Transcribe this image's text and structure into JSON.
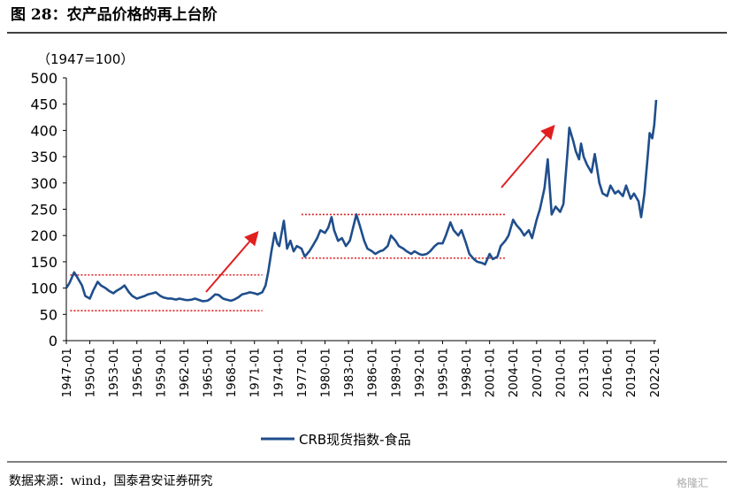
{
  "chart_data": {
    "type": "line",
    "title": "图 28：农产品价格的再上台阶",
    "y_label": "（1947=100）",
    "source": "数据来源：wind，国泰君安证券研究",
    "watermark": "格隆汇",
    "x": [
      "1947-01",
      "1947-06",
      "1948-01",
      "1948-06",
      "1949-01",
      "1949-06",
      "1950-01",
      "1950-06",
      "1951-01",
      "1951-06",
      "1952-01",
      "1952-06",
      "1953-01",
      "1953-06",
      "1954-01",
      "1954-06",
      "1955-01",
      "1955-06",
      "1956-01",
      "1956-06",
      "1957-01",
      "1957-06",
      "1958-01",
      "1958-06",
      "1959-01",
      "1959-06",
      "1960-01",
      "1960-06",
      "1961-01",
      "1961-06",
      "1962-01",
      "1962-06",
      "1963-01",
      "1963-06",
      "1964-01",
      "1964-06",
      "1965-01",
      "1965-06",
      "1966-01",
      "1966-06",
      "1967-01",
      "1967-06",
      "1968-01",
      "1968-06",
      "1969-01",
      "1969-06",
      "1970-01",
      "1970-06",
      "1971-01",
      "1971-06",
      "1972-01",
      "1972-06",
      "1972-10",
      "1973-03",
      "1973-08",
      "1973-12",
      "1974-03",
      "1974-10",
      "1975-03",
      "1975-08",
      "1976-01",
      "1976-06",
      "1977-01",
      "1977-06",
      "1978-01",
      "1978-06",
      "1979-01",
      "1979-06",
      "1980-01",
      "1980-06",
      "1980-11",
      "1981-03",
      "1981-09",
      "1982-03",
      "1982-09",
      "1983-03",
      "1983-09",
      "1984-01",
      "1984-06",
      "1985-01",
      "1985-06",
      "1986-01",
      "1986-06",
      "1987-01",
      "1987-06",
      "1988-01",
      "1988-06",
      "1989-01",
      "1989-06",
      "1990-01",
      "1990-06",
      "1991-01",
      "1991-06",
      "1992-01",
      "1992-06",
      "1993-01",
      "1993-06",
      "1994-01",
      "1994-06",
      "1995-01",
      "1995-06",
      "1996-01",
      "1996-06",
      "1997-01",
      "1997-06",
      "1998-01",
      "1998-06",
      "1999-01",
      "1999-06",
      "2000-01",
      "2000-06",
      "2001-01",
      "2001-06",
      "2002-01",
      "2002-06",
      "2003-01",
      "2003-06",
      "2004-01",
      "2004-06",
      "2005-01",
      "2005-06",
      "2006-01",
      "2006-06",
      "2007-01",
      "2007-06",
      "2008-01",
      "2008-06",
      "2008-12",
      "2009-06",
      "2010-01",
      "2010-06",
      "2011-01",
      "2011-03",
      "2011-09",
      "2012-01",
      "2012-06",
      "2012-09",
      "2013-01",
      "2013-06",
      "2014-01",
      "2014-06",
      "2015-01",
      "2015-06",
      "2016-01",
      "2016-06",
      "2017-01",
      "2017-06",
      "2018-01",
      "2018-06",
      "2019-01",
      "2019-06",
      "2020-01",
      "2020-05",
      "2020-10",
      "2021-03",
      "2021-06",
      "2021-10",
      "2022-01",
      "2022-04"
    ],
    "series": [
      {
        "name": "CRB现货指数-食品",
        "color": "#1f4e8c",
        "values": [
          100,
          110,
          130,
          120,
          105,
          85,
          80,
          95,
          112,
          105,
          100,
          95,
          90,
          95,
          100,
          105,
          92,
          85,
          80,
          82,
          85,
          88,
          90,
          92,
          85,
          82,
          80,
          80,
          78,
          80,
          78,
          77,
          78,
          80,
          77,
          75,
          76,
          80,
          88,
          87,
          80,
          78,
          76,
          78,
          83,
          88,
          90,
          92,
          90,
          88,
          92,
          105,
          130,
          170,
          205,
          185,
          180,
          228,
          175,
          190,
          170,
          180,
          175,
          160,
          170,
          180,
          195,
          210,
          205,
          215,
          235,
          210,
          190,
          195,
          180,
          190,
          220,
          240,
          220,
          190,
          175,
          170,
          165,
          170,
          172,
          180,
          200,
          190,
          180,
          175,
          170,
          165,
          170,
          165,
          163,
          165,
          170,
          180,
          185,
          185,
          200,
          225,
          210,
          200,
          210,
          185,
          165,
          155,
          150,
          148,
          145,
          165,
          155,
          160,
          180,
          190,
          200,
          230,
          220,
          210,
          200,
          210,
          195,
          230,
          250,
          290,
          345,
          240,
          255,
          245,
          260,
          370,
          405,
          380,
          360,
          345,
          375,
          350,
          335,
          320,
          355,
          300,
          280,
          275,
          295,
          280,
          285,
          275,
          295,
          270,
          280,
          265,
          235,
          280,
          350,
          395,
          385,
          410,
          458
        ]
      }
    ],
    "xlim": [
      "1947-01",
      "2022-04"
    ],
    "xticks": [
      "1947-01",
      "1950-01",
      "1953-01",
      "1956-01",
      "1959-01",
      "1962-01",
      "1965-01",
      "1968-01",
      "1971-01",
      "1974-01",
      "1977-01",
      "1980-01",
      "1983-01",
      "1986-01",
      "1989-01",
      "1992-01",
      "1995-01",
      "1998-01",
      "2001-01",
      "2004-01",
      "2007-01",
      "2010-01",
      "2013-01",
      "2016-01",
      "2019-01",
      "2022-01"
    ],
    "ylim": [
      0,
      500
    ],
    "yticks": [
      0,
      50,
      100,
      150,
      200,
      250,
      300,
      350,
      400,
      450,
      500
    ],
    "ranges": [
      {
        "from": "1947-07",
        "to": "1972-01",
        "low": 57,
        "high": 125,
        "color": "#e02020"
      },
      {
        "from": "1977-01",
        "to": "2003-01",
        "low": 157,
        "high": 240,
        "color": "#e02020"
      }
    ],
    "legend": "bottom"
  }
}
